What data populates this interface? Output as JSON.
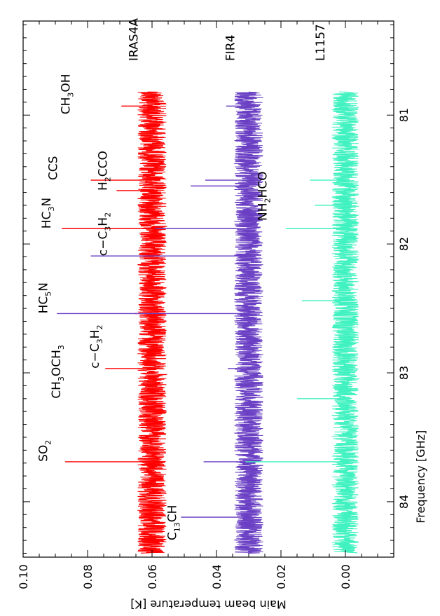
{
  "chart_data": {
    "type": "line",
    "xlabel": "Frequency [GHz]",
    "ylabel": "Main beam temperature [K]",
    "xlim": [
      80.27,
      84.43
    ],
    "ylim": [
      -0.015,
      0.1
    ],
    "x_ticks": [
      81,
      82,
      83,
      84
    ],
    "x_tick_labels": [
      "81",
      "82",
      "83",
      "84"
    ],
    "y_ticks": [
      0.0,
      0.02,
      0.04,
      0.06,
      0.08,
      0.1
    ],
    "y_tick_labels": [
      "0.00",
      "0.02",
      "0.04",
      "0.06",
      "0.08",
      "0.10"
    ],
    "x_range_observed": [
      80.82,
      84.4
    ],
    "series": [
      {
        "name": "IRAS4A",
        "color": "#ff0000",
        "baseline": 0.06,
        "noise_amplitude": 0.0045,
        "peaks": [
          {
            "x": 80.93,
            "y": 0.0695
          },
          {
            "x": 81.505,
            "y": 0.079
          },
          {
            "x": 81.586,
            "y": 0.071
          },
          {
            "x": 81.881,
            "y": 0.088
          },
          {
            "x": 82.093,
            "y": 0.0695
          },
          {
            "x": 82.54,
            "y": 0.0655
          },
          {
            "x": 82.966,
            "y": 0.0745
          },
          {
            "x": 83.69,
            "y": 0.087
          }
        ]
      },
      {
        "name": "FIR4",
        "color": "#6a3fc4",
        "baseline": 0.03,
        "noise_amplitude": 0.0045,
        "peaks": [
          {
            "x": 80.93,
            "y": 0.037
          },
          {
            "x": 81.505,
            "y": 0.0435
          },
          {
            "x": 81.55,
            "y": 0.048
          },
          {
            "x": 81.881,
            "y": 0.059
          },
          {
            "x": 82.093,
            "y": 0.079
          },
          {
            "x": 82.54,
            "y": 0.0895
          },
          {
            "x": 82.966,
            "y": 0.0365
          },
          {
            "x": 83.69,
            "y": 0.044
          },
          {
            "x": 84.12,
            "y": 0.051
          }
        ]
      },
      {
        "name": "L1157",
        "color": "#40f2c0",
        "baseline": 0.0,
        "noise_amplitude": 0.0042,
        "peaks": [
          {
            "x": 81.505,
            "y": 0.011
          },
          {
            "x": 81.7,
            "y": 0.0095
          },
          {
            "x": 81.881,
            "y": 0.0185
          },
          {
            "x": 82.44,
            "y": 0.0135
          },
          {
            "x": 83.2,
            "y": 0.015
          },
          {
            "x": 83.69,
            "y": 0.031
          }
        ]
      }
    ],
    "annotations": [
      {
        "text": "CH3OH",
        "parts": [
          [
            "CH",
            "n"
          ],
          [
            "3",
            "s"
          ],
          [
            "OH",
            "n"
          ]
        ],
        "x": 80.995,
        "y": 0.0855
      },
      {
        "text": "CCS",
        "parts": [
          [
            "CCS",
            "n"
          ]
        ],
        "x": 81.505,
        "y": 0.0895
      },
      {
        "text": "H2CCO",
        "parts": [
          [
            "H",
            "n"
          ],
          [
            "2",
            "s"
          ],
          [
            "CCO",
            "n"
          ]
        ],
        "x": 81.586,
        "y": 0.074
      },
      {
        "text": "HC3N",
        "parts": [
          [
            "HC",
            "n"
          ],
          [
            "3",
            "s"
          ],
          [
            "N",
            "n"
          ]
        ],
        "x": 81.881,
        "y": 0.0915
      },
      {
        "text": "c−C3H2",
        "parts": [
          [
            "c−C",
            "n"
          ],
          [
            "3",
            "s"
          ],
          [
            "H",
            "n"
          ],
          [
            "2",
            "s"
          ]
        ],
        "x": 82.093,
        "y": 0.074
      },
      {
        "text": "HC5N",
        "parts": [
          [
            "HC",
            "n"
          ],
          [
            "5",
            "s"
          ],
          [
            "N",
            "n"
          ]
        ],
        "x": 82.54,
        "y": 0.0925
      },
      {
        "text": "c−C3H2",
        "parts": [
          [
            "c−C",
            "n"
          ],
          [
            "3",
            "s"
          ],
          [
            "H",
            "n"
          ],
          [
            "2",
            "s"
          ]
        ],
        "x": 82.966,
        "y": 0.0765
      },
      {
        "text": "CH3OCH3",
        "parts": [
          [
            "CH",
            "n"
          ],
          [
            "3",
            "s"
          ],
          [
            "OCH",
            "n"
          ],
          [
            "3",
            "s"
          ]
        ],
        "x": 83.2,
        "y": 0.0885
      },
      {
        "text": "SO2",
        "parts": [
          [
            "SO",
            "n"
          ],
          [
            "2",
            "s"
          ]
        ],
        "x": 83.69,
        "y": 0.0925
      },
      {
        "text": "C13CH",
        "parts": [
          [
            "C",
            "n"
          ],
          [
            "13",
            "s"
          ],
          [
            "CH",
            "n"
          ]
        ],
        "x": 84.3,
        "y": 0.0525
      },
      {
        "text": "NH2HCO",
        "parts": [
          [
            "NH",
            "n"
          ],
          [
            "2",
            "s"
          ],
          [
            "HCO",
            "n"
          ]
        ],
        "x": 81.82,
        "y": 0.0245
      },
      {
        "text": "IRAS4A",
        "parts": [
          [
            "IRAS4A",
            "n"
          ]
        ],
        "x": 80.58,
        "y": 0.0645
      },
      {
        "text": "FIR4",
        "parts": [
          [
            "FIR4",
            "n"
          ]
        ],
        "x": 80.58,
        "y": 0.0345
      },
      {
        "text": "L1157",
        "parts": [
          [
            "L1157",
            "n"
          ]
        ],
        "x": 80.58,
        "y": 0.0065
      }
    ]
  }
}
